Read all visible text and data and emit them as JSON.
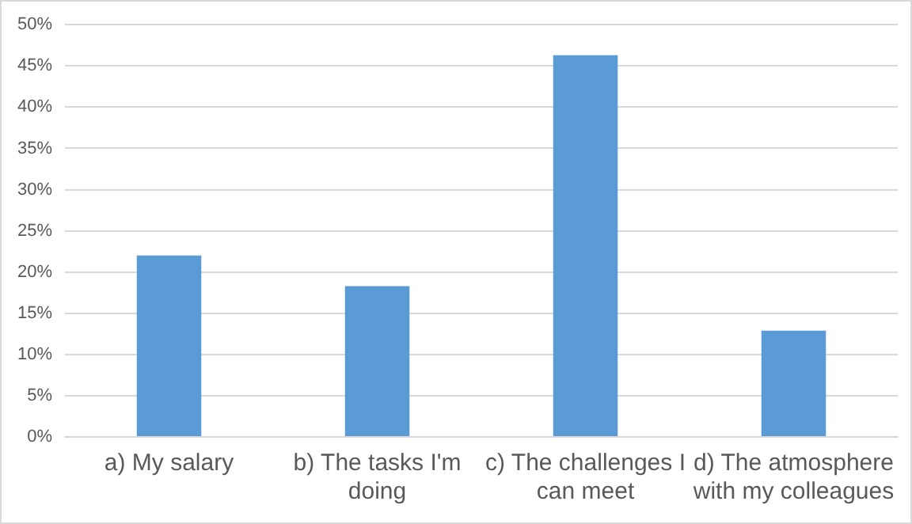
{
  "chart_data": {
    "type": "bar",
    "categories": [
      "a) My salary",
      "b) The tasks I'm doing",
      "c) The challenges I can meet",
      "d) The atmosphere with my colleagues"
    ],
    "values": [
      22.0,
      18.3,
      46.3,
      12.9
    ],
    "color": "#5b9bd5",
    "ylim": [
      0,
      50
    ],
    "yticks": [
      {
        "value": 0,
        "label": "0%"
      },
      {
        "value": 5,
        "label": "5%"
      },
      {
        "value": 10,
        "label": "10%"
      },
      {
        "value": 15,
        "label": "15%"
      },
      {
        "value": 20,
        "label": "20%"
      },
      {
        "value": 25,
        "label": "25%"
      },
      {
        "value": 30,
        "label": "30%"
      },
      {
        "value": 35,
        "label": "35%"
      },
      {
        "value": 40,
        "label": "40%"
      },
      {
        "value": 45,
        "label": "45%"
      },
      {
        "value": 50,
        "label": "50%"
      }
    ],
    "grid": "y",
    "legend": false
  }
}
